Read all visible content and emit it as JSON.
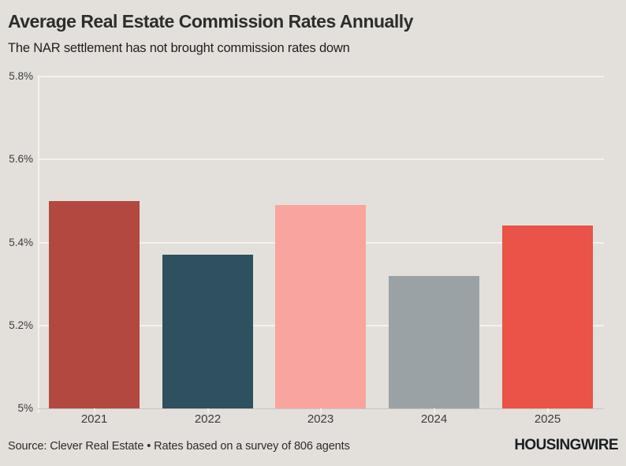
{
  "page": {
    "background_color": "#e3e0db"
  },
  "chart_data": {
    "type": "bar",
    "title": "Average Real Estate Commission Rates Annually",
    "subtitle": "The NAR settlement has not brought commission rates down",
    "categories": [
      "2021",
      "2022",
      "2023",
      "2024",
      "2025"
    ],
    "values": [
      5.5,
      5.37,
      5.49,
      5.32,
      5.44
    ],
    "unit": "%",
    "xlabel": "",
    "ylabel": "",
    "ylim": [
      5.0,
      5.8
    ],
    "yticks": [
      {
        "value": 5.8,
        "label": "5.8%"
      },
      {
        "value": 5.6,
        "label": "5.6%"
      },
      {
        "value": 5.4,
        "label": "5.4%"
      },
      {
        "value": 5.2,
        "label": "5.2%"
      },
      {
        "value": 5.0,
        "label": "5%"
      }
    ],
    "bar_colors": [
      "#b24840",
      "#2f505f",
      "#f9a49e",
      "#9aa2a5",
      "#ea5347"
    ],
    "grid": true,
    "gridline_color": "#f4f2ee",
    "legend_position": "none"
  },
  "footer": {
    "source": "Source: Clever Real Estate • Rates based on a survey of 806 agents",
    "logo": "HOUSINGWIRE"
  }
}
